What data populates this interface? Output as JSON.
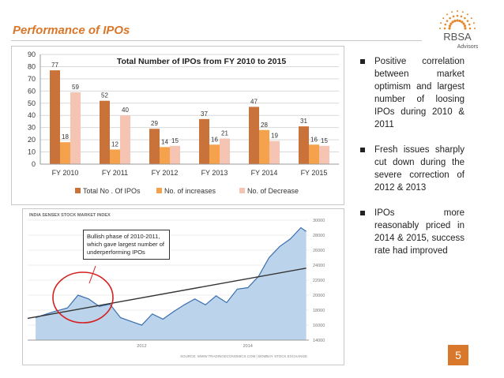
{
  "title": "Performance of IPOs",
  "logo": {
    "name": "RBSA",
    "sub": "Advisors"
  },
  "chart_data": [
    {
      "type": "bar",
      "title": "Total Number of IPOs from FY 2010 to 2015",
      "categories": [
        "FY 2010",
        "FY 2011",
        "FY 2012",
        "FY 2013",
        "FY 2014",
        "FY 2015"
      ],
      "series": [
        {
          "name": "Total No . Of IPOs",
          "values": [
            77,
            52,
            29,
            37,
            47,
            31
          ],
          "color": "#c9733a"
        },
        {
          "name": "No. of increases",
          "values": [
            18,
            12,
            14,
            16,
            28,
            16
          ],
          "color": "#f6a14c"
        },
        {
          "name": "No. of Decrease",
          "values": [
            59,
            40,
            15,
            21,
            19,
            15
          ],
          "color": "#f5c4b3"
        }
      ],
      "ylim": [
        0,
        90
      ],
      "yticks": [
        0,
        10,
        20,
        30,
        40,
        50,
        60,
        70,
        80,
        90
      ],
      "grid": true,
      "legend": "bottom"
    },
    {
      "type": "area",
      "title": "INDIA SENSEX STOCK MARKET INDEX",
      "source": "SOURCE: WWW.TRADINGECONOMICS.COM | BOMBAY STOCK EXCHANGE",
      "xticks": [
        "2012",
        "2014"
      ],
      "yticks": [
        14000,
        16000,
        18000,
        20000,
        22000,
        24000,
        26000,
        28000,
        30000
      ],
      "ylim": [
        14000,
        30000
      ],
      "x": [
        2010.0,
        2010.3,
        2010.6,
        2010.8,
        2011.0,
        2011.2,
        2011.4,
        2011.6,
        2011.8,
        2012.0,
        2012.2,
        2012.4,
        2012.6,
        2012.8,
        2013.0,
        2013.2,
        2013.4,
        2013.6,
        2013.8,
        2014.0,
        2014.2,
        2014.4,
        2014.6,
        2014.8,
        2015.0,
        2015.1
      ],
      "values": [
        17000,
        17700,
        18300,
        20000,
        19500,
        18500,
        18800,
        17000,
        16500,
        16000,
        17500,
        16800,
        17800,
        18700,
        19500,
        18700,
        19900,
        19000,
        20800,
        21000,
        22500,
        25000,
        26500,
        27500,
        29000,
        28500
      ],
      "trendline": {
        "from": [
          2009.85,
          16900
        ],
        "to": [
          2015.1,
          23600
        ]
      },
      "callout": "Bullish phase of 2010-2011, which gave largest number of underperforming IPOs"
    }
  ],
  "bullets": [
    "Positive correlation between market optimism and largest number of loosing IPOs during 2010 & 2011",
    "Fresh issues sharply cut down during the severe correction of 2012 & 2013",
    "IPOs more reasonably priced in 2014 & 2015, success rate had improved"
  ],
  "page_number": "5"
}
